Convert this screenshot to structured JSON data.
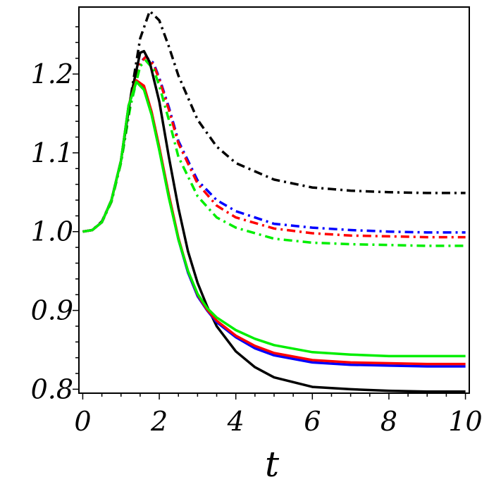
{
  "chart_data": {
    "type": "line",
    "title": "",
    "xlabel": "t",
    "ylabel": "",
    "xlim": [
      -0.1,
      10.1
    ],
    "ylim": [
      0.795,
      1.285
    ],
    "xticks": [
      0,
      2,
      4,
      6,
      8,
      10
    ],
    "xtick_labels": [
      "0",
      "2",
      "4",
      "6",
      "8",
      "10"
    ],
    "yticks": [
      0.8,
      0.9,
      1.0,
      1.1,
      1.2
    ],
    "ytick_labels": [
      "0.8",
      "0.9",
      "1.0",
      "1.1",
      "1.2"
    ],
    "grid": false,
    "legend": "none",
    "series": [
      {
        "color": "#000000",
        "style": "dashdot",
        "points": [
          [
            0,
            1.0
          ],
          [
            0.25,
            1.002
          ],
          [
            0.5,
            1.013
          ],
          [
            0.75,
            1.04
          ],
          [
            1.0,
            1.09
          ],
          [
            1.25,
            1.17
          ],
          [
            1.5,
            1.245
          ],
          [
            1.75,
            1.28
          ],
          [
            2.0,
            1.268
          ],
          [
            2.25,
            1.235
          ],
          [
            2.5,
            1.198
          ],
          [
            3.0,
            1.142
          ],
          [
            3.5,
            1.108
          ],
          [
            4.0,
            1.087
          ],
          [
            5.0,
            1.066
          ],
          [
            6.0,
            1.056
          ],
          [
            7.0,
            1.052
          ],
          [
            8.0,
            1.05
          ],
          [
            9.0,
            1.049
          ],
          [
            10.0,
            1.049
          ]
        ]
      },
      {
        "color": "#0000ff",
        "style": "dashdot",
        "points": [
          [
            0,
            1.0
          ],
          [
            0.25,
            1.002
          ],
          [
            0.5,
            1.012
          ],
          [
            0.75,
            1.038
          ],
          [
            1.0,
            1.088
          ],
          [
            1.25,
            1.165
          ],
          [
            1.5,
            1.215
          ],
          [
            1.65,
            1.222
          ],
          [
            1.85,
            1.214
          ],
          [
            2.0,
            1.195
          ],
          [
            2.25,
            1.158
          ],
          [
            2.5,
            1.115
          ],
          [
            3.0,
            1.065
          ],
          [
            3.5,
            1.04
          ],
          [
            4.0,
            1.026
          ],
          [
            5.0,
            1.01
          ],
          [
            6.0,
            1.005
          ],
          [
            7.0,
            1.002
          ],
          [
            8.0,
            1.0
          ],
          [
            9.0,
            0.999
          ],
          [
            10.0,
            0.999
          ]
        ]
      },
      {
        "color": "#ff0000",
        "style": "dashdot",
        "points": [
          [
            0,
            1.0
          ],
          [
            0.25,
            1.002
          ],
          [
            0.5,
            1.012
          ],
          [
            0.75,
            1.038
          ],
          [
            1.0,
            1.088
          ],
          [
            1.25,
            1.165
          ],
          [
            1.5,
            1.214
          ],
          [
            1.65,
            1.222
          ],
          [
            1.85,
            1.212
          ],
          [
            2.0,
            1.193
          ],
          [
            2.25,
            1.155
          ],
          [
            2.5,
            1.112
          ],
          [
            3.0,
            1.061
          ],
          [
            3.5,
            1.033
          ],
          [
            4.0,
            1.018
          ],
          [
            5.0,
            1.004
          ],
          [
            6.0,
            0.998
          ],
          [
            7.0,
            0.995
          ],
          [
            8.0,
            0.994
          ],
          [
            9.0,
            0.993
          ],
          [
            10.0,
            0.993
          ]
        ]
      },
      {
        "color": "#00ee00",
        "style": "dashdot",
        "points": [
          [
            0,
            1.0
          ],
          [
            0.25,
            1.002
          ],
          [
            0.5,
            1.012
          ],
          [
            0.75,
            1.038
          ],
          [
            1.0,
            1.087
          ],
          [
            1.25,
            1.16
          ],
          [
            1.5,
            1.21
          ],
          [
            1.65,
            1.217
          ],
          [
            1.85,
            1.206
          ],
          [
            2.0,
            1.185
          ],
          [
            2.25,
            1.142
          ],
          [
            2.5,
            1.095
          ],
          [
            3.0,
            1.045
          ],
          [
            3.5,
            1.018
          ],
          [
            4.0,
            1.005
          ],
          [
            5.0,
            0.991
          ],
          [
            6.0,
            0.986
          ],
          [
            7.0,
            0.984
          ],
          [
            8.0,
            0.983
          ],
          [
            9.0,
            0.982
          ],
          [
            10.0,
            0.982
          ]
        ]
      },
      {
        "color": "#000000",
        "style": "solid",
        "points": [
          [
            0,
            1.0
          ],
          [
            0.25,
            1.002
          ],
          [
            0.5,
            1.012
          ],
          [
            0.75,
            1.04
          ],
          [
            1.0,
            1.09
          ],
          [
            1.25,
            1.17
          ],
          [
            1.5,
            1.227
          ],
          [
            1.6,
            1.229
          ],
          [
            1.75,
            1.215
          ],
          [
            2.0,
            1.165
          ],
          [
            2.25,
            1.095
          ],
          [
            2.5,
            1.03
          ],
          [
            2.75,
            0.975
          ],
          [
            3.0,
            0.935
          ],
          [
            3.25,
            0.905
          ],
          [
            3.5,
            0.88
          ],
          [
            4.0,
            0.848
          ],
          [
            4.5,
            0.828
          ],
          [
            5.0,
            0.815
          ],
          [
            6.0,
            0.803
          ],
          [
            7.0,
            0.8
          ],
          [
            8.0,
            0.798
          ],
          [
            9.0,
            0.797
          ],
          [
            10.0,
            0.797
          ]
        ]
      },
      {
        "color": "#0000ff",
        "style": "solid",
        "points": [
          [
            0,
            1.0
          ],
          [
            0.25,
            1.002
          ],
          [
            0.5,
            1.012
          ],
          [
            0.75,
            1.04
          ],
          [
            1.0,
            1.09
          ],
          [
            1.2,
            1.16
          ],
          [
            1.4,
            1.19
          ],
          [
            1.6,
            1.183
          ],
          [
            1.8,
            1.15
          ],
          [
            2.0,
            1.105
          ],
          [
            2.25,
            1.045
          ],
          [
            2.5,
            0.99
          ],
          [
            2.75,
            0.948
          ],
          [
            3.0,
            0.918
          ],
          [
            3.25,
            0.9
          ],
          [
            3.5,
            0.885
          ],
          [
            4.0,
            0.866
          ],
          [
            4.5,
            0.852
          ],
          [
            5.0,
            0.843
          ],
          [
            6.0,
            0.834
          ],
          [
            7.0,
            0.831
          ],
          [
            8.0,
            0.83
          ],
          [
            9.0,
            0.829
          ],
          [
            10.0,
            0.829
          ]
        ]
      },
      {
        "color": "#ff0000",
        "style": "solid",
        "points": [
          [
            0,
            1.0
          ],
          [
            0.25,
            1.002
          ],
          [
            0.5,
            1.012
          ],
          [
            0.75,
            1.04
          ],
          [
            1.0,
            1.09
          ],
          [
            1.2,
            1.16
          ],
          [
            1.4,
            1.192
          ],
          [
            1.6,
            1.185
          ],
          [
            1.8,
            1.152
          ],
          [
            2.0,
            1.107
          ],
          [
            2.25,
            1.047
          ],
          [
            2.5,
            0.992
          ],
          [
            2.75,
            0.95
          ],
          [
            3.0,
            0.92
          ],
          [
            3.25,
            0.901
          ],
          [
            3.5,
            0.887
          ],
          [
            4.0,
            0.868
          ],
          [
            4.5,
            0.855
          ],
          [
            5.0,
            0.846
          ],
          [
            6.0,
            0.837
          ],
          [
            7.0,
            0.834
          ],
          [
            8.0,
            0.833
          ],
          [
            9.0,
            0.832
          ],
          [
            10.0,
            0.832
          ]
        ]
      },
      {
        "color": "#00ee00",
        "style": "solid",
        "points": [
          [
            0,
            1.0
          ],
          [
            0.25,
            1.002
          ],
          [
            0.5,
            1.012
          ],
          [
            0.75,
            1.04
          ],
          [
            1.0,
            1.09
          ],
          [
            1.2,
            1.16
          ],
          [
            1.4,
            1.19
          ],
          [
            1.6,
            1.18
          ],
          [
            1.8,
            1.148
          ],
          [
            2.0,
            1.103
          ],
          [
            2.25,
            1.043
          ],
          [
            2.5,
            0.99
          ],
          [
            2.75,
            0.95
          ],
          [
            3.0,
            0.921
          ],
          [
            3.25,
            0.903
          ],
          [
            3.5,
            0.891
          ],
          [
            4.0,
            0.875
          ],
          [
            4.5,
            0.864
          ],
          [
            5.0,
            0.856
          ],
          [
            6.0,
            0.847
          ],
          [
            7.0,
            0.844
          ],
          [
            8.0,
            0.842
          ],
          [
            9.0,
            0.842
          ],
          [
            10.0,
            0.842
          ]
        ]
      }
    ]
  }
}
